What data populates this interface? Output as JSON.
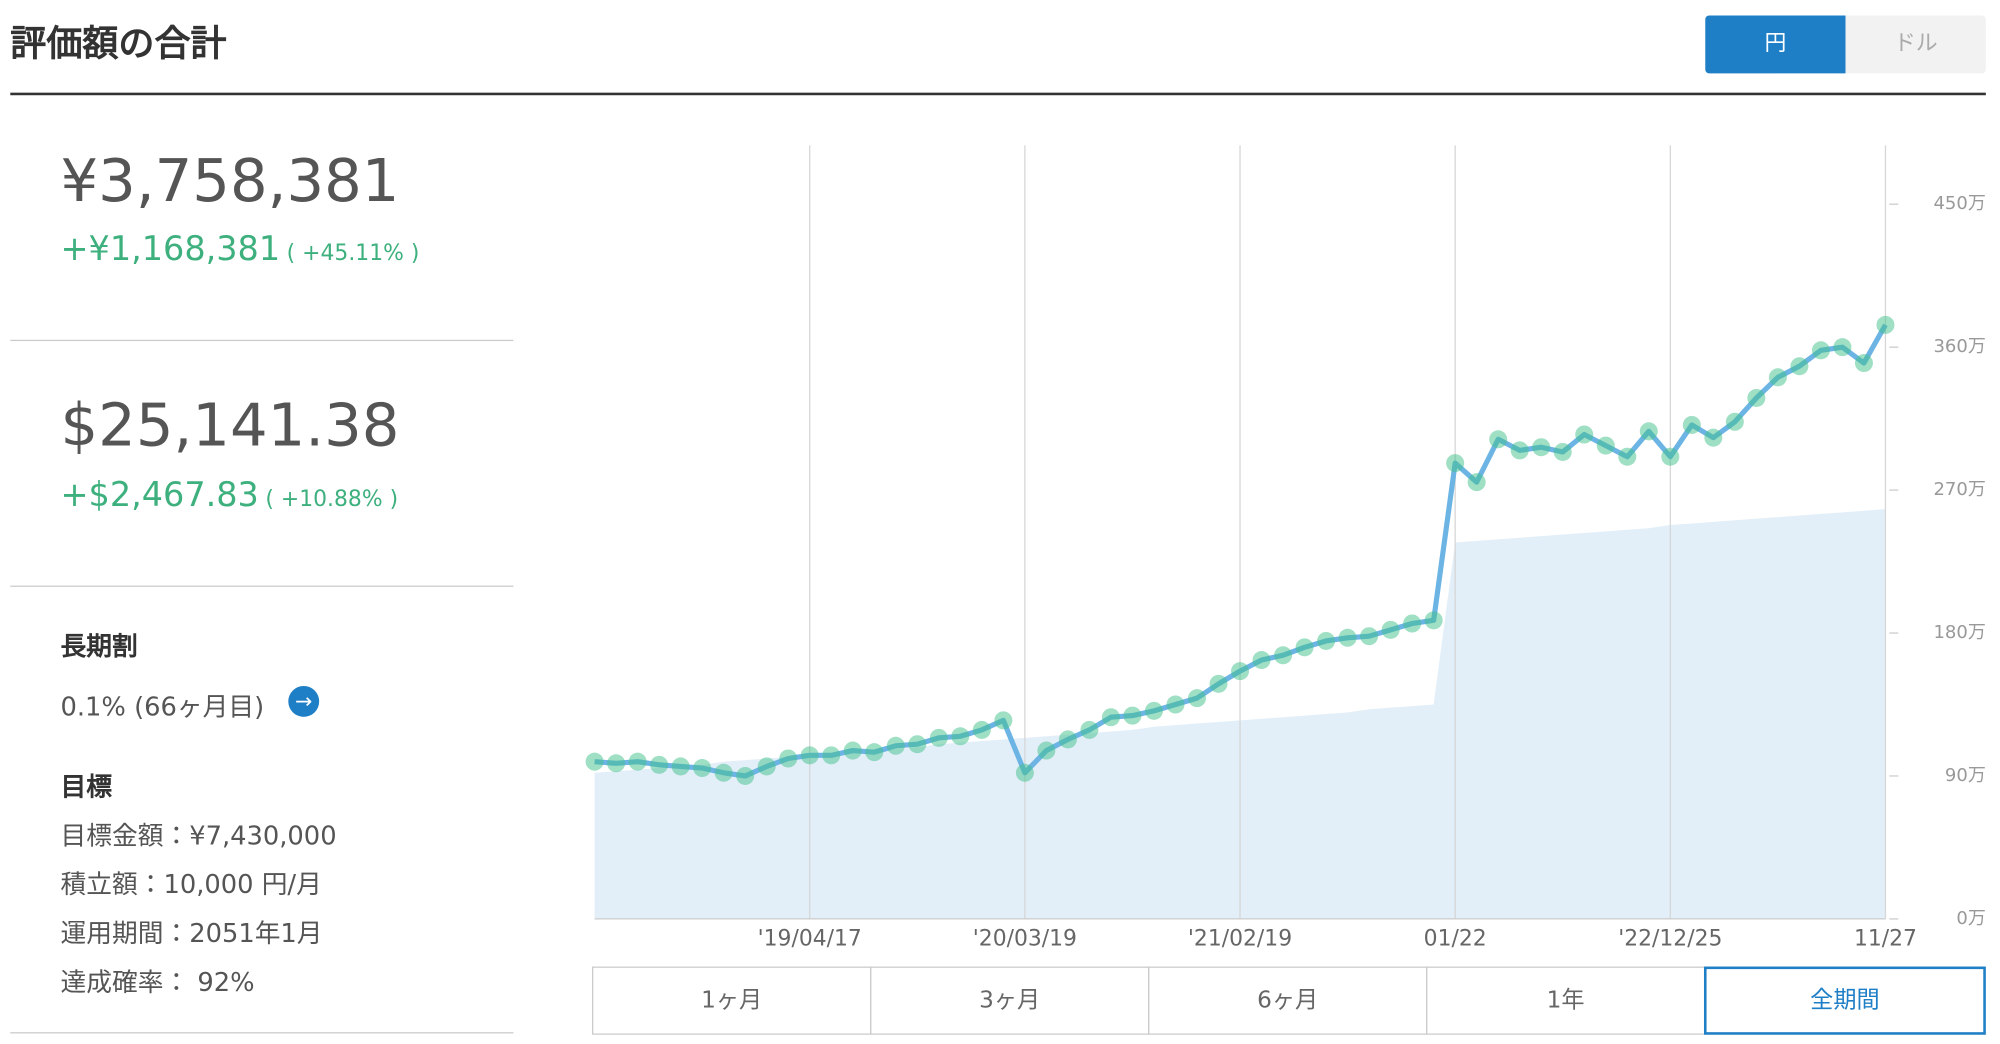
{
  "header": {
    "title": "評価額の合計",
    "currency_toggle": [
      "円",
      "ドル"
    ]
  },
  "summary": {
    "jpy": {
      "total": "¥3,758,381",
      "gain": "+¥1,168,381",
      "gain_pct": "( +45.11% )"
    },
    "usd": {
      "total": "$25,141.38",
      "gain": "+$2,467.83",
      "gain_pct": "( +10.88% )"
    }
  },
  "long_term": {
    "heading": "長期割",
    "value": "0.1% (66ヶ月目)"
  },
  "goal": {
    "heading": "目標",
    "items": [
      "目標金額：¥7,430,000",
      "積立額：10,000 円/月",
      "運用期間：2051年1月",
      "達成確率： 92%"
    ]
  },
  "period_buttons": [
    "1ヶ月",
    "3ヶ月",
    "6ヶ月",
    "1年",
    "全期間"
  ],
  "chart_data": {
    "type": "line",
    "categories": [
      null,
      null,
      null,
      null,
      null,
      null,
      null,
      null,
      null,
      null,
      "'19/04/17",
      null,
      null,
      null,
      null,
      null,
      null,
      null,
      null,
      null,
      "'20/03/19",
      null,
      null,
      null,
      null,
      null,
      null,
      null,
      null,
      null,
      "'21/02/19",
      null,
      null,
      null,
      null,
      null,
      null,
      null,
      null,
      null,
      "01/22",
      null,
      null,
      null,
      null,
      null,
      null,
      null,
      null,
      null,
      "'22/12/25",
      null,
      null,
      null,
      null,
      null,
      null,
      null,
      null,
      null,
      "11/27"
    ],
    "series": [
      {
        "color": "#6cb4e4",
        "marker_color": "#3fbf8a",
        "values": [
          99,
          98,
          99,
          97,
          96,
          95,
          92,
          90,
          96,
          101,
          103,
          103,
          106,
          105,
          109,
          110,
          114,
          115,
          119,
          125,
          92,
          106,
          113,
          119,
          127,
          128,
          131,
          135,
          139,
          148,
          156,
          163,
          166,
          171,
          175,
          177,
          178,
          182,
          186,
          188,
          287,
          275,
          302,
          295,
          297,
          294,
          305,
          298,
          291,
          307,
          291,
          311,
          303,
          313,
          328,
          341,
          348,
          358,
          360,
          350,
          374
        ]
      },
      {
        "color": "#e3eff8",
        "values": [
          92,
          93,
          94,
          95,
          96,
          97,
          99,
          100,
          101,
          102,
          103,
          104,
          105,
          106,
          107,
          108,
          110,
          111,
          112,
          113,
          114,
          115,
          116,
          117,
          118,
          119,
          121,
          122,
          123,
          124,
          125,
          126,
          127,
          128,
          129,
          130,
          132,
          133,
          134,
          135,
          237,
          238,
          239,
          240,
          241,
          242,
          243,
          244,
          245,
          246,
          248,
          249,
          250,
          251,
          252,
          253,
          254,
          255,
          256,
          257,
          258
        ]
      }
    ],
    "ylim": [
      0,
      487
    ],
    "yticks": [
      {
        "value": 0,
        "label": "0万"
      },
      {
        "value": 90,
        "label": "90万"
      },
      {
        "value": 180,
        "label": "180万"
      },
      {
        "value": 270,
        "label": "270万"
      },
      {
        "value": 360,
        "label": "360万"
      },
      {
        "value": 450,
        "label": "450万"
      }
    ],
    "grid": true
  }
}
